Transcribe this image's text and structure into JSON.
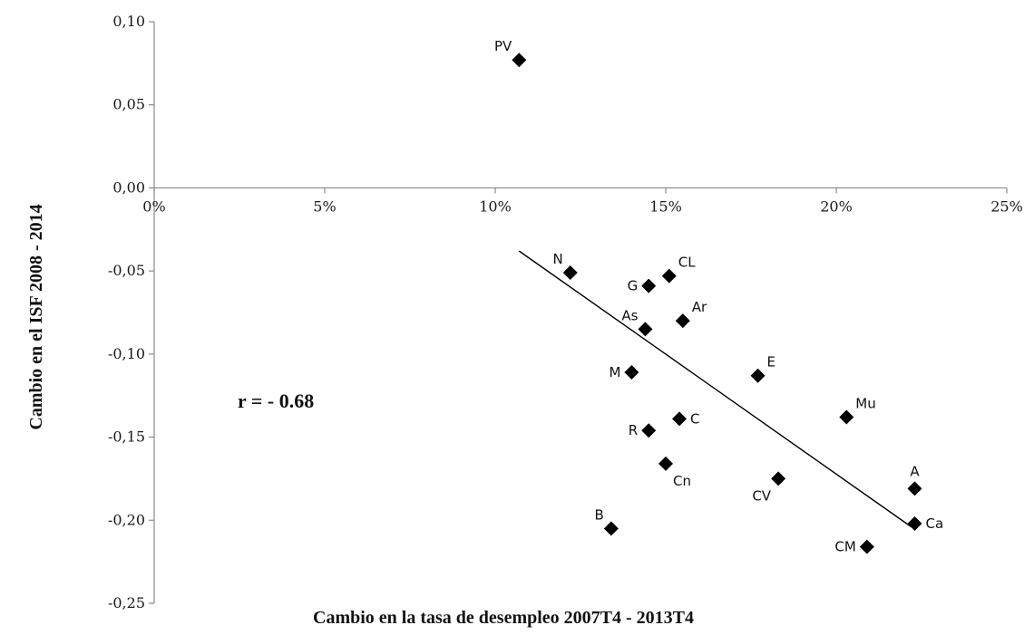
{
  "chart_data": {
    "type": "scatter",
    "title": "",
    "xlabel": "Cambio en la tasa de desempleo 2007T4 - 2013T4",
    "ylabel": "Cambio en el ISF 2008 - 2014",
    "xlim": [
      0,
      0.25
    ],
    "ylim": [
      -0.25,
      0.1
    ],
    "xticks": [
      {
        "value": 0,
        "label": "0%"
      },
      {
        "value": 0.05,
        "label": "5%"
      },
      {
        "value": 0.1,
        "label": "10%"
      },
      {
        "value": 0.15,
        "label": "15%"
      },
      {
        "value": 0.2,
        "label": "20%"
      },
      {
        "value": 0.25,
        "label": "25%"
      }
    ],
    "yticks": [
      {
        "value": 0.1,
        "label": "0,10"
      },
      {
        "value": 0.05,
        "label": "0,05"
      },
      {
        "value": 0.0,
        "label": "0,00"
      },
      {
        "value": -0.05,
        "label": "-0,05"
      },
      {
        "value": -0.1,
        "label": "-0,10"
      },
      {
        "value": -0.15,
        "label": "-0,15"
      },
      {
        "value": -0.2,
        "label": "-0,20"
      },
      {
        "value": -0.25,
        "label": "-0,25"
      }
    ],
    "points": [
      {
        "label": "PV",
        "x": 0.107,
        "y": 0.077,
        "label_pos": "above-left"
      },
      {
        "label": "N",
        "x": 0.122,
        "y": -0.051,
        "label_pos": "above-left"
      },
      {
        "label": "G",
        "x": 0.145,
        "y": -0.059,
        "label_pos": "left"
      },
      {
        "label": "CL",
        "x": 0.151,
        "y": -0.053,
        "label_pos": "above-right"
      },
      {
        "label": "As",
        "x": 0.144,
        "y": -0.085,
        "label_pos": "above-left"
      },
      {
        "label": "Ar",
        "x": 0.155,
        "y": -0.08,
        "label_pos": "above-right"
      },
      {
        "label": "M",
        "x": 0.14,
        "y": -0.111,
        "label_pos": "left"
      },
      {
        "label": "E",
        "x": 0.177,
        "y": -0.113,
        "label_pos": "above-right"
      },
      {
        "label": "Mu",
        "x": 0.203,
        "y": -0.138,
        "label_pos": "above-right"
      },
      {
        "label": "C",
        "x": 0.154,
        "y": -0.139,
        "label_pos": "right"
      },
      {
        "label": "R",
        "x": 0.145,
        "y": -0.146,
        "label_pos": "left"
      },
      {
        "label": "Cn",
        "x": 0.15,
        "y": -0.166,
        "label_pos": "below-right"
      },
      {
        "label": "CV",
        "x": 0.183,
        "y": -0.175,
        "label_pos": "below-left"
      },
      {
        "label": "A",
        "x": 0.223,
        "y": -0.181,
        "label_pos": "above"
      },
      {
        "label": "B",
        "x": 0.134,
        "y": -0.205,
        "label_pos": "above-left"
      },
      {
        "label": "Ca",
        "x": 0.223,
        "y": -0.202,
        "label_pos": "right"
      },
      {
        "label": "CM",
        "x": 0.209,
        "y": -0.216,
        "label_pos": "left"
      }
    ],
    "trendline": {
      "x": [
        0.107,
        0.222
      ],
      "y": [
        -0.038,
        -0.204
      ]
    },
    "annotation": "r = - 0.68",
    "legend": "none",
    "grid": false,
    "marker_color": "#000000",
    "line_color": "#000000"
  }
}
